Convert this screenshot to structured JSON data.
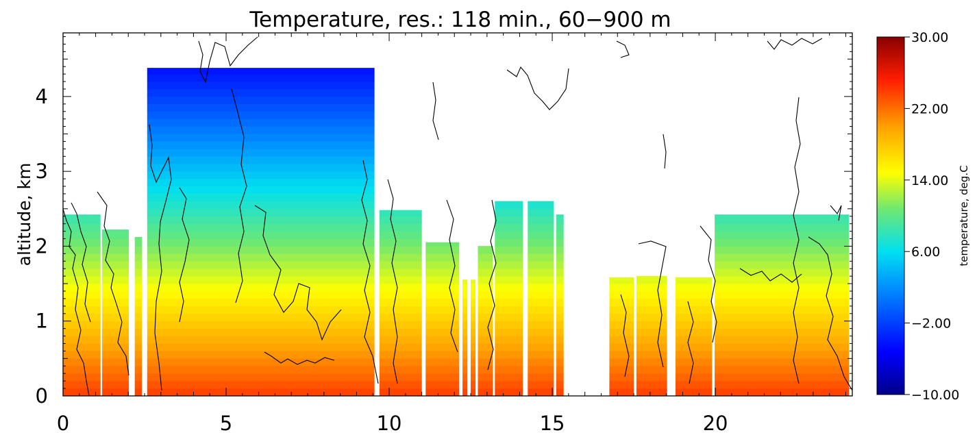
{
  "chart_data": {
    "type": "heatmap",
    "title": "Temperature, res.: 118 min.,  60−900 m",
    "xlabel": "",
    "ylabel": "altitude, km",
    "xlim": [
      0,
      24.2
    ],
    "ylim": [
      0,
      4.85
    ],
    "x_ticks": [
      "0",
      "5",
      "10",
      "15",
      "20"
    ],
    "x_tick_values": [
      0,
      5,
      10,
      15,
      20
    ],
    "y_ticks": [
      "0",
      "1",
      "2",
      "3",
      "4"
    ],
    "y_tick_values": [
      0,
      1,
      2,
      3,
      4
    ],
    "colorbar": {
      "label": "temperature, deg.C",
      "range": [
        -10,
        30
      ],
      "ticks": [
        "−10.00",
        "−2.00",
        "6.00",
        "14.00",
        "22.00",
        "30.00"
      ],
      "tick_values": [
        -10,
        -2,
        6,
        14,
        22,
        30
      ],
      "colormap": "rainbow (dark blue → cyan → yellow → red → dark red)"
    },
    "columns": [
      {
        "x0": 0.0,
        "x1": 1.15,
        "top": 2.42
      },
      {
        "x0": 1.2,
        "x1": 2.02,
        "top": 2.22
      },
      {
        "x0": 2.2,
        "x1": 2.42,
        "top": 2.12
      },
      {
        "x0": 2.58,
        "x1": 9.55,
        "top": 4.38
      },
      {
        "x0": 9.7,
        "x1": 11.0,
        "top": 2.48
      },
      {
        "x0": 11.12,
        "x1": 12.15,
        "top": 2.05
      },
      {
        "x0": 12.25,
        "x1": 12.4,
        "top": 1.55
      },
      {
        "x0": 12.5,
        "x1": 12.65,
        "top": 1.55
      },
      {
        "x0": 12.72,
        "x1": 13.18,
        "top": 2.0
      },
      {
        "x0": 13.24,
        "x1": 14.1,
        "top": 2.6
      },
      {
        "x0": 14.25,
        "x1": 15.05,
        "top": 2.6
      },
      {
        "x0": 15.12,
        "x1": 15.35,
        "top": 2.42
      },
      {
        "x0": 16.75,
        "x1": 17.5,
        "top": 1.58
      },
      {
        "x0": 17.58,
        "x1": 18.52,
        "top": 1.6
      },
      {
        "x0": 18.78,
        "x1": 19.9,
        "top": 1.58
      },
      {
        "x0": 19.98,
        "x1": 24.1,
        "top": 2.42
      }
    ],
    "surface_temperature_degC": 24,
    "lapse_rate_degC_per_km": 6.5
  }
}
